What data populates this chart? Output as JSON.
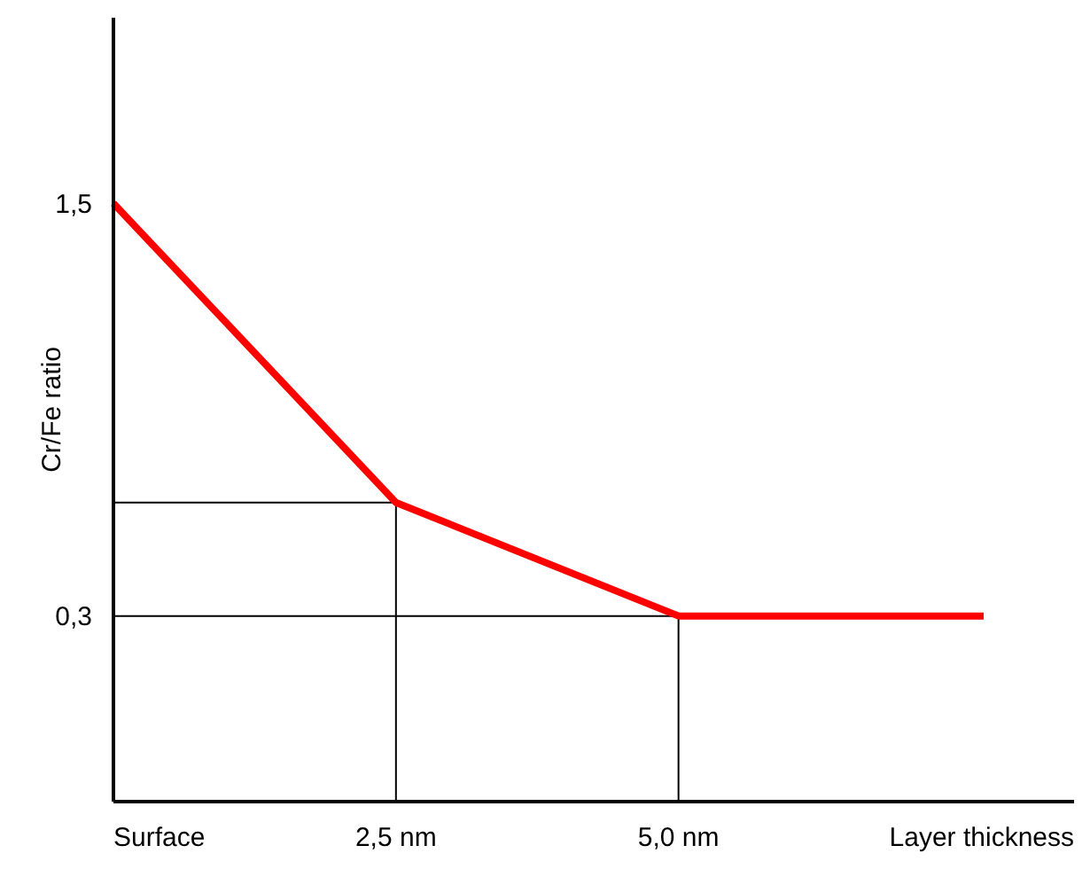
{
  "chart_data": {
    "type": "line",
    "ylabel": "Cr/Fe ratio",
    "xlabel": "Layer thickness",
    "x": [
      0,
      2.5,
      5,
      7.7
    ],
    "series": [
      {
        "color": "#ff0000",
        "values": [
          1.5,
          0.63,
          0.3,
          0.3
        ]
      }
    ],
    "xlim": [
      0,
      8.5
    ],
    "ylim": [
      -0.24,
      2.04
    ],
    "xticks": [
      {
        "value": 0,
        "label": "Surface"
      },
      {
        "value": 2.5,
        "label": "2,5 nm"
      },
      {
        "value": 5,
        "label": "5,0 nm"
      }
    ],
    "yticks": [
      {
        "value": 1.5,
        "label": "1,5"
      },
      {
        "value": 0.3,
        "label": "0,3"
      }
    ],
    "ref_lines": [
      {
        "axis": "x",
        "value": 2.5,
        "color": "#000000"
      },
      {
        "axis": "x",
        "value": 5,
        "color": "#000000"
      },
      {
        "axis": "y",
        "value": 0.63,
        "color": "#000000"
      },
      {
        "axis": "y",
        "value": 0.3,
        "color": "#000000"
      }
    ],
    "grid": false,
    "marker": "none",
    "line_style": "solid"
  }
}
